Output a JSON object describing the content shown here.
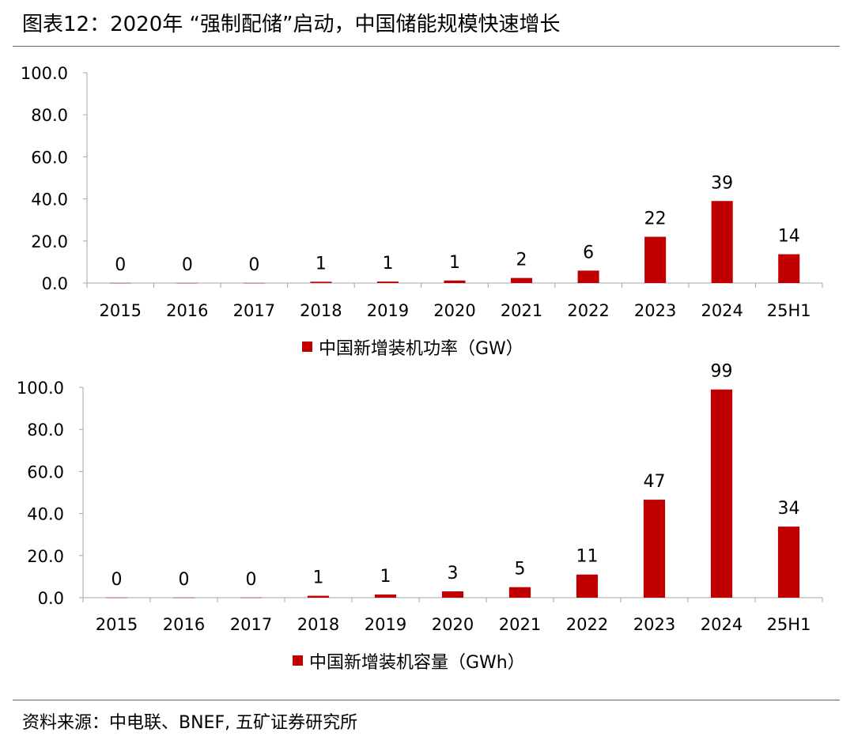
{
  "title": "图表12：2020年 “强制配储”启动，中国储能规模快速增长",
  "source": "资料来源：中电联、BNEF, 五矿证券研究所",
  "colors": {
    "bar": "#C00000",
    "axis": "#A6A6A6"
  },
  "chart_data": [
    {
      "type": "bar",
      "categories": [
        "2015",
        "2016",
        "2017",
        "2018",
        "2019",
        "2020",
        "2021",
        "2022",
        "2023",
        "2024",
        "25H1"
      ],
      "series": [
        {
          "name": "中国新增装机功率（GW）",
          "values": [
            0.05,
            0.05,
            0.05,
            0.6,
            0.7,
            1.2,
            2.4,
            5.9,
            22,
            39,
            13.7
          ]
        }
      ],
      "data_labels": [
        "0",
        "0",
        "0",
        "1",
        "1",
        "1",
        "2",
        "6",
        "22",
        "39",
        "14"
      ],
      "ylim": [
        0,
        100
      ],
      "yticks": [
        "0.0",
        "20.0",
        "40.0",
        "60.0",
        "80.0",
        "100.0"
      ],
      "legend": "bottom-center",
      "grid": false
    },
    {
      "type": "bar",
      "categories": [
        "2015",
        "2016",
        "2017",
        "2018",
        "2019",
        "2020",
        "2021",
        "2022",
        "2023",
        "2024",
        "25H1"
      ],
      "series": [
        {
          "name": "中国新增装机容量（GWh）",
          "values": [
            0.05,
            0.05,
            0.05,
            0.9,
            1.5,
            3,
            5,
            11,
            46.6,
            99,
            33.8
          ]
        }
      ],
      "data_labels": [
        "0",
        "0",
        "0",
        "1",
        "1",
        "3",
        "5",
        "11",
        "47",
        "99",
        "34"
      ],
      "ylim": [
        0,
        100
      ],
      "yticks": [
        "0.0",
        "20.0",
        "40.0",
        "60.0",
        "80.0",
        "100.0"
      ],
      "legend": "bottom-center",
      "grid": false
    }
  ]
}
